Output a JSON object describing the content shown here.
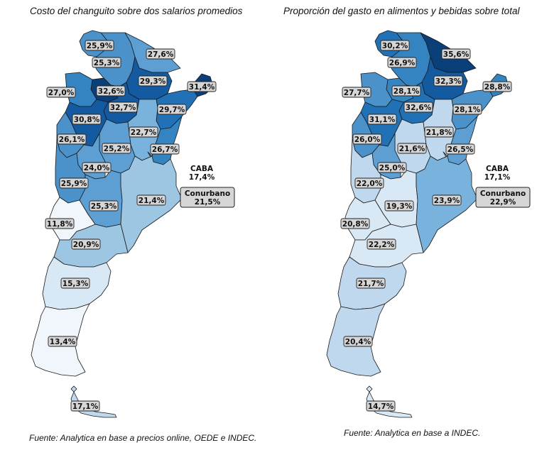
{
  "colors": {
    "c12": "#f0f6fc",
    "c15": "#d9e8f5",
    "c20": "#c0d8ed",
    "c21": "#9dc6e3",
    "c23": "#79b2dc",
    "c25": "#5d9fd2",
    "c26": "#4b92cb",
    "c27": "#3584c2",
    "c29": "#2071b6",
    "c31": "#145aa0",
    "c33": "#0a3f7a",
    "label_bg": "#d6d6d6",
    "border": "#1a1a1a"
  },
  "left_map": {
    "title": "Costo del changuito sobre dos salarios promedios",
    "source": "Fuente: Analytica en base a precios online, OEDE e INDEC.",
    "labels": {
      "jujuy": "25,9%",
      "salta": "25,3%",
      "formosa": "27,6%",
      "chaco": "29,3%",
      "tucuman": "32,6%",
      "catamarca": "27,0%",
      "santiago": "32,7%",
      "misiones": "31,4%",
      "corrientes": "29,7%",
      "larioja": "30,8%",
      "sanjuan": "26,1%",
      "santafe": "22,7%",
      "cordoba": "25,2%",
      "entrerios": "26,7%",
      "sanluis": "24,0%",
      "mendoza": "25,9%",
      "lapampa": "25,3%",
      "buenosaires": "21,4%",
      "neuquen": "11,8%",
      "rionegro": "20,9%",
      "chubut": "15,3%",
      "santacruz": "13,4%",
      "tierradelfuego": "17,1%",
      "caba_name": "CABA",
      "caba_value": "17,4%",
      "conurbano_name": "Conurbano",
      "conurbano_value": "21,5%"
    },
    "levels": {
      "jujuy": "c26",
      "salta": "c26",
      "formosa": "c25",
      "chaco": "c31",
      "tucuman": "c33",
      "catamarca": "c27",
      "santiago": "c31",
      "misiones": "c33",
      "corrientes": "c29",
      "larioja": "c31",
      "sanjuan": "c26",
      "santafe": "c23",
      "cordoba": "c25",
      "entrerios": "c27",
      "sanluis": "c25",
      "mendoza": "c26",
      "lapampa": "c25",
      "buenosaires": "c21",
      "neuquen": "c12",
      "rionegro": "c21",
      "chubut": "c15",
      "santacruz": "c12",
      "tierradelfuego": "c20"
    }
  },
  "right_map": {
    "title": "Proporción del gasto en alimentos y bebidas sobre total",
    "source": "Fuente: Analytica en base a INDEC.",
    "labels": {
      "jujuy": "30,2%",
      "salta": "26,9%",
      "formosa": "35,6%",
      "chaco": "32,3%",
      "tucuman": "28,1%",
      "catamarca": "27,7%",
      "santiago": "32,6%",
      "misiones": "28,8%",
      "corrientes": "28,1%",
      "larioja": "31,1%",
      "sanjuan": "26,0%",
      "santafe": "21,8%",
      "cordoba": "21,6%",
      "entrerios": "26,5%",
      "sanluis": "25,0%",
      "mendoza": "22,0%",
      "lapampa": "19,3%",
      "buenosaires": "23,9%",
      "neuquen": "20,8%",
      "rionegro": "22,2%",
      "chubut": "21,7%",
      "santacruz": "20,4%",
      "tierradelfuego": "14,7%",
      "caba_name": "CABA",
      "caba_value": "17,1%",
      "conurbano_name": "Conurbano",
      "conurbano_value": "22,9%"
    },
    "levels": {
      "jujuy": "c29",
      "salta": "c27",
      "formosa": "c33",
      "chaco": "c31",
      "tucuman": "c27",
      "catamarca": "c26",
      "santiago": "c29",
      "misiones": "c27",
      "corrientes": "c26",
      "larioja": "c29",
      "sanjuan": "c26",
      "santafe": "c20",
      "cordoba": "c20",
      "entrerios": "c25",
      "sanluis": "c25",
      "mendoza": "c20",
      "lapampa": "c15",
      "buenosaires": "c23",
      "neuquen": "c15",
      "rionegro": "c15",
      "chubut": "c20",
      "santacruz": "c20",
      "tierradelfuego": "c15"
    }
  }
}
